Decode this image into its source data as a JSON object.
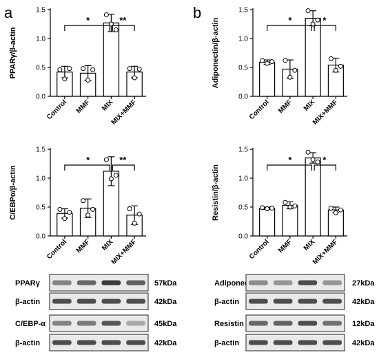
{
  "panel_letters": [
    "a",
    "b"
  ],
  "chart_data": [
    {
      "type": "bar",
      "categories": [
        "Control",
        "MMF",
        "MIX",
        "MIX+MMF"
      ],
      "values": [
        0.42,
        0.4,
        1.27,
        0.42
      ],
      "errors": [
        0.1,
        0.13,
        0.15,
        0.1
      ],
      "points": [
        [
          0.46,
          0.3,
          0.48
        ],
        [
          0.48,
          0.28,
          0.46
        ],
        [
          1.41,
          1.25,
          1.15
        ],
        [
          0.48,
          0.32,
          0.47
        ]
      ],
      "ylabel": "PPARγ/β-actin",
      "ylim": [
        0,
        1.5
      ],
      "yticks": [
        "0.0",
        "0.5",
        "1.0",
        "1.5"
      ],
      "significance": [
        {
          "from": "Control",
          "to": "MIX",
          "label": "*"
        },
        {
          "from": "MIX",
          "to": "MIX+MMF",
          "label": "**"
        }
      ]
    },
    {
      "type": "bar",
      "categories": [
        "Control",
        "MMF",
        "MIX",
        "MIX+MMF"
      ],
      "values": [
        0.59,
        0.47,
        1.35,
        0.54
      ],
      "errors": [
        0.04,
        0.16,
        0.13,
        0.12
      ],
      "points": [
        [
          0.62,
          0.57,
          0.6
        ],
        [
          0.62,
          0.33,
          0.45
        ],
        [
          1.48,
          1.25,
          1.32
        ],
        [
          0.65,
          0.45,
          0.52
        ]
      ],
      "ylabel": "Adiponectin/β-actin",
      "ylim": [
        0,
        1.5
      ],
      "yticks": [
        "0.0",
        "0.5",
        "1.0",
        "1.5"
      ],
      "significance": [
        {
          "from": "Control",
          "to": "MIX",
          "label": "*"
        },
        {
          "from": "MIX",
          "to": "MIX+MMF",
          "label": "*"
        }
      ]
    },
    {
      "type": "bar",
      "categories": [
        "Control",
        "MMF",
        "MIX",
        "MIX+MMF"
      ],
      "values": [
        0.39,
        0.48,
        1.12,
        0.36
      ],
      "errors": [
        0.08,
        0.16,
        0.25,
        0.16
      ],
      "points": [
        [
          0.46,
          0.3,
          0.41
        ],
        [
          0.61,
          0.36,
          0.46
        ],
        [
          1.32,
          0.99,
          1.05
        ],
        [
          0.47,
          0.22,
          0.38
        ]
      ],
      "ylabel": "C/EBPα/β-actin",
      "ylim": [
        0,
        1.5
      ],
      "yticks": [
        "0.0",
        "0.5",
        "1.0",
        "1.5"
      ],
      "significance": [
        {
          "from": "Control",
          "to": "MIX",
          "label": "*"
        },
        {
          "from": "MIX",
          "to": "MIX+MMF",
          "label": "**"
        }
      ]
    },
    {
      "type": "bar",
      "categories": [
        "Control",
        "MMF",
        "MIX",
        "MIX+MMF"
      ],
      "values": [
        0.48,
        0.53,
        1.35,
        0.45
      ],
      "errors": [
        0.02,
        0.06,
        0.09,
        0.05
      ],
      "points": [
        [
          0.49,
          0.47,
          0.48
        ],
        [
          0.58,
          0.5,
          0.52
        ],
        [
          1.45,
          1.32,
          1.28
        ],
        [
          0.48,
          0.4,
          0.45
        ]
      ],
      "ylabel": "Resistin/β-actin",
      "ylim": [
        0,
        1.5
      ],
      "yticks": [
        "0.0",
        "0.5",
        "1.0",
        "1.5"
      ],
      "significance": [
        {
          "from": "Control",
          "to": "MIX",
          "label": "*"
        },
        {
          "from": "MIX",
          "to": "MIX+MMF",
          "label": "*"
        }
      ]
    }
  ],
  "blots": [
    {
      "rows": [
        {
          "label": "PPARγ",
          "size": "57kDa",
          "intensity": [
            0.55,
            0.7,
            0.95,
            0.75
          ]
        },
        {
          "label": "β-actin",
          "size": "42kDa",
          "intensity": [
            0.85,
            0.85,
            0.85,
            0.85
          ]
        },
        {
          "label": "C/EBP-α",
          "size": "45kDa",
          "intensity": [
            0.55,
            0.6,
            0.8,
            0.35
          ]
        },
        {
          "label": "β-actin",
          "size": "42kDa",
          "intensity": [
            0.85,
            0.85,
            0.85,
            0.85
          ]
        }
      ]
    },
    {
      "rows": [
        {
          "label": "Adiponectin",
          "size": "27kDa",
          "intensity": [
            0.5,
            0.45,
            0.85,
            0.45
          ]
        },
        {
          "label": "β-actin",
          "size": "42kDa",
          "intensity": [
            0.85,
            0.85,
            0.85,
            0.85
          ]
        },
        {
          "label": "Resistin",
          "size": "12kDa",
          "intensity": [
            0.7,
            0.72,
            0.85,
            0.65
          ]
        },
        {
          "label": "β-actin",
          "size": "42kDa",
          "intensity": [
            0.85,
            0.85,
            0.85,
            0.85
          ]
        }
      ]
    }
  ]
}
